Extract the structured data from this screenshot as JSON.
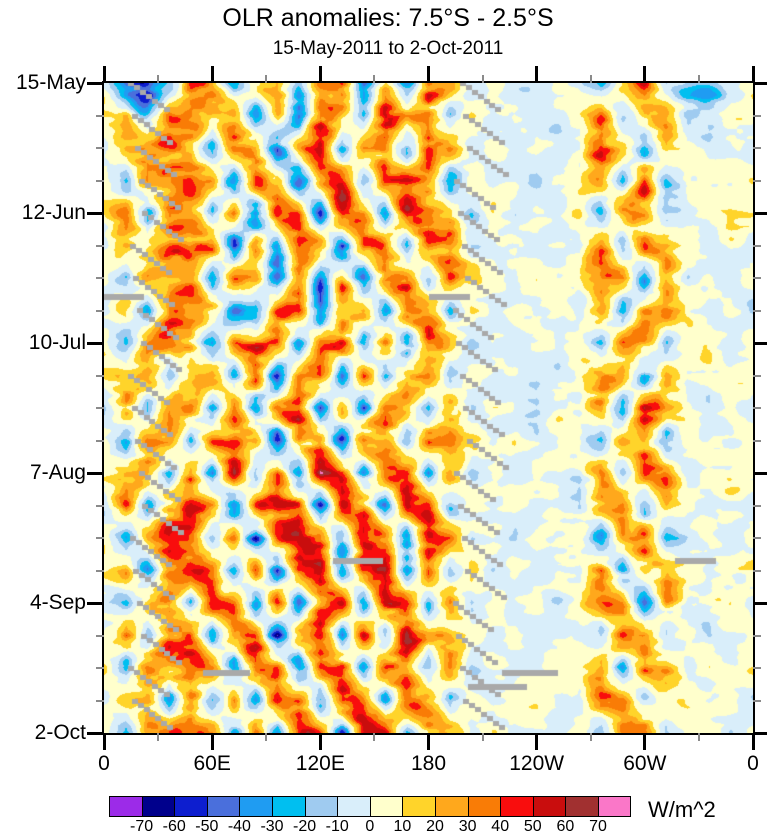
{
  "title": "OLR anomalies: 7.5°S - 2.5°S",
  "subtitle": "15-May-2011 to 2-Oct-2011",
  "units_label": "W/m^2",
  "chart_data": {
    "type": "heatmap",
    "title": "OLR anomalies: 7.5°S - 2.5°S",
    "subtitle": "15-May-2011 to 2-Oct-2011",
    "x_axis": {
      "kind": "longitude",
      "range_deg": [
        0,
        360
      ],
      "major_ticks_deg": [
        0,
        60,
        120,
        180,
        240,
        300,
        360
      ],
      "major_tick_labels": [
        "0",
        "60E",
        "120E",
        "180",
        "120W",
        "60W",
        "0"
      ],
      "minor_step_deg": 30
    },
    "y_axis": {
      "kind": "time",
      "range_days": [
        0,
        140
      ],
      "major_ticks_days": [
        0,
        28,
        56,
        84,
        112,
        140
      ],
      "major_tick_labels": [
        "15-May",
        "12-Jun",
        "10-Jul",
        "7-Aug",
        "4-Sep",
        "2-Oct"
      ],
      "minor_step_days": 7
    },
    "colorbar": {
      "units": "W/m^2",
      "levels": [
        -70,
        -60,
        -50,
        -40,
        -30,
        -20,
        -10,
        0,
        10,
        20,
        30,
        40,
        50,
        60,
        70
      ],
      "colors": [
        "#9C2BE8",
        "#00008C",
        "#0D1ECF",
        "#4A6FDC",
        "#1F9CF2",
        "#00BFF0",
        "#9FCBF0",
        "#D9EEFA",
        "#FFFFCC",
        "#FFD42A",
        "#FFA81C",
        "#F97C06",
        "#F90D0D",
        "#C90D0D",
        "#A13030",
        "#FA77C8"
      ]
    },
    "grid": {
      "lon_step_deg": 12,
      "day_step": 7,
      "values": [
        [
          5,
          -45,
          -65,
          -30,
          25,
          30,
          -25,
          15,
          35,
          -20,
          25,
          40,
          -30,
          20,
          -35,
          30,
          25,
          -15,
          5,
          -5,
          -5,
          5,
          -5,
          -25,
          20,
          35,
          -15,
          -15,
          -25,
          -15,
          5
        ],
        [
          8,
          15,
          -30,
          35,
          30,
          20,
          30,
          -35,
          25,
          -40,
          45,
          25,
          -25,
          45,
          20,
          35,
          -20,
          10,
          -5,
          5,
          -5,
          -5,
          5,
          30,
          -25,
          15,
          30,
          -20,
          -15,
          5,
          8
        ],
        [
          -5,
          20,
          35,
          40,
          20,
          -30,
          35,
          30,
          -45,
          30,
          50,
          -30,
          35,
          25,
          -40,
          40,
          30,
          -10,
          5,
          -5,
          5,
          -5,
          -5,
          40,
          20,
          -30,
          25,
          10,
          -5,
          5,
          -5
        ],
        [
          5,
          -25,
          30,
          25,
          35,
          30,
          -40,
          45,
          30,
          -50,
          25,
          45,
          -35,
          30,
          45,
          25,
          -35,
          15,
          -5,
          5,
          -10,
          5,
          5,
          25,
          -20,
          40,
          -25,
          5,
          10,
          -5,
          5
        ],
        [
          10,
          25,
          -35,
          30,
          40,
          -25,
          30,
          -55,
          40,
          35,
          -45,
          50,
          30,
          -30,
          50,
          30,
          20,
          -20,
          10,
          -5,
          5,
          -5,
          10,
          -30,
          35,
          25,
          -15,
          -5,
          5,
          10,
          10
        ],
        [
          -8,
          30,
          25,
          45,
          25,
          35,
          -50,
          35,
          -30,
          45,
          30,
          -40,
          45,
          35,
          -25,
          45,
          30,
          -10,
          -5,
          5,
          -5,
          5,
          -5,
          35,
          -25,
          30,
          20,
          5,
          -10,
          5,
          -8
        ],
        [
          5,
          -20,
          30,
          35,
          30,
          -35,
          40,
          30,
          -45,
          35,
          -35,
          30,
          -45,
          40,
          30,
          -30,
          35,
          15,
          5,
          -10,
          5,
          -5,
          5,
          25,
          30,
          -35,
          25,
          -5,
          5,
          -5,
          5
        ],
        [
          -10,
          25,
          -30,
          40,
          35,
          30,
          -35,
          -45,
          30,
          40,
          -50,
          35,
          30,
          -35,
          45,
          35,
          -25,
          10,
          -5,
          5,
          -5,
          5,
          -10,
          30,
          -30,
          25,
          35,
          10,
          -5,
          5,
          -10
        ],
        [
          5,
          -30,
          35,
          30,
          25,
          -40,
          30,
          35,
          45,
          -35,
          30,
          45,
          -30,
          35,
          -45,
          30,
          25,
          -15,
          5,
          -5,
          5,
          -5,
          5,
          -25,
          35,
          30,
          -20,
          5,
          10,
          -5,
          5
        ],
        [
          8,
          20,
          30,
          -25,
          40,
          35,
          -30,
          45,
          -50,
          35,
          45,
          -35,
          40,
          -30,
          35,
          40,
          -20,
          10,
          -5,
          5,
          -5,
          -5,
          5,
          35,
          25,
          -30,
          20,
          -5,
          5,
          5,
          8
        ],
        [
          -5,
          30,
          -25,
          35,
          30,
          -30,
          45,
          -40,
          35,
          50,
          -40,
          35,
          -35,
          45,
          30,
          -25,
          30,
          -10,
          5,
          -5,
          -10,
          5,
          -5,
          30,
          -35,
          40,
          25,
          5,
          -10,
          5,
          -5
        ],
        [
          5,
          -25,
          35,
          40,
          -20,
          40,
          30,
          35,
          -45,
          40,
          35,
          -45,
          50,
          35,
          -30,
          35,
          25,
          15,
          -5,
          5,
          -5,
          5,
          5,
          -30,
          35,
          25,
          -25,
          10,
          5,
          -5,
          5
        ],
        [
          10,
          25,
          30,
          -30,
          35,
          -35,
          50,
          -30,
          40,
          -45,
          55,
          40,
          -35,
          40,
          45,
          -30,
          35,
          -15,
          5,
          -5,
          5,
          -5,
          -5,
          35,
          -25,
          30,
          30,
          -5,
          5,
          10,
          10
        ],
        [
          -8,
          30,
          -30,
          35,
          40,
          30,
          -45,
          35,
          50,
          35,
          -50,
          45,
          35,
          -40,
          35,
          30,
          -25,
          10,
          -5,
          5,
          -5,
          5,
          -10,
          25,
          35,
          -30,
          20,
          5,
          -5,
          5,
          -8
        ],
        [
          5,
          -30,
          25,
          45,
          30,
          -25,
          35,
          -50,
          35,
          55,
          40,
          -35,
          50,
          35,
          -30,
          40,
          30,
          -10,
          5,
          -10,
          5,
          -5,
          5,
          -35,
          30,
          40,
          -20,
          -5,
          10,
          -5,
          5
        ],
        [
          8,
          25,
          -35,
          30,
          35,
          35,
          -30,
          40,
          -45,
          40,
          50,
          -40,
          35,
          45,
          -35,
          35,
          -20,
          15,
          -5,
          5,
          -5,
          5,
          -5,
          30,
          -30,
          25,
          30,
          10,
          -5,
          5,
          8
        ],
        [
          -5,
          -20,
          30,
          35,
          -25,
          40,
          35,
          -35,
          45,
          -40,
          35,
          45,
          -40,
          55,
          35,
          -25,
          30,
          -10,
          5,
          -5,
          5,
          -10,
          5,
          35,
          25,
          -35,
          25,
          -5,
          5,
          10,
          -5
        ],
        [
          5,
          30,
          -25,
          40,
          30,
          -30,
          45,
          35,
          -50,
          35,
          55,
          -30,
          45,
          -35,
          50,
          30,
          25,
          10,
          -5,
          5,
          -5,
          5,
          -5,
          -25,
          40,
          30,
          -15,
          5,
          -10,
          5,
          5
        ],
        [
          10,
          -25,
          35,
          30,
          40,
          35,
          -40,
          50,
          35,
          -45,
          40,
          50,
          -35,
          40,
          35,
          -30,
          35,
          -15,
          5,
          -5,
          -5,
          5,
          5,
          30,
          -30,
          35,
          25,
          -5,
          5,
          -5,
          10
        ],
        [
          -8,
          25,
          30,
          -30,
          35,
          -35,
          30,
          -45,
          55,
          40,
          -35,
          45,
          40,
          -30,
          45,
          35,
          -20,
          10,
          -5,
          5,
          5,
          -5,
          -10,
          35,
          30,
          -25,
          20,
          10,
          -5,
          5,
          -8
        ],
        [
          5,
          -30,
          25,
          35,
          30,
          30,
          -35,
          40,
          -40,
          50,
          35,
          -40,
          50,
          45,
          -25,
          30,
          25,
          -10,
          5,
          -5,
          5,
          -5,
          5,
          -30,
          25,
          40,
          -20,
          5,
          10,
          -5,
          5
        ]
      ]
    },
    "missing_data": {
      "color": "#A9A9A9",
      "staircases": [
        {
          "lon_start": 19,
          "period_days": 7,
          "steps": 7,
          "lon_per_step": 3.3
        },
        {
          "lon_start": 199,
          "period_days": 7,
          "steps": 7,
          "lon_per_step": 3.3
        }
      ],
      "bars": [
        {
          "day": 46,
          "lon": [
            0,
            22
          ]
        },
        {
          "day": 46,
          "lon": [
            180,
            203
          ]
        },
        {
          "day": 103,
          "lon": [
            127,
            155
          ]
        },
        {
          "day": 103,
          "lon": [
            317,
            340
          ]
        },
        {
          "day": 127,
          "lon": [
            55,
            81
          ]
        },
        {
          "day": 127,
          "lon": [
            221,
            252
          ]
        },
        {
          "day": 130,
          "lon": [
            202,
            235
          ]
        }
      ]
    }
  }
}
